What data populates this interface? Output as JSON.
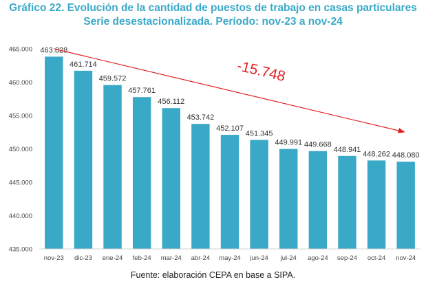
{
  "header": {
    "title_line1": "Gráfico 22. Evolución de la cantidad de puestos de trabajo en casas particulares",
    "title_line2": "Serie desestacionalizada. Período: nov-23 a nov-24"
  },
  "footer": {
    "source": "Fuente: elaboración CEPA en base a SIPA."
  },
  "colors": {
    "bar": "#3aa9c8",
    "title": "#3aa9c8",
    "trend": "#e02020"
  },
  "chart_data": {
    "type": "bar",
    "title": "Gráfico 22. Evolución de la cantidad de puestos de trabajo en casas particulares",
    "subtitle": "Serie desestacionalizada. Período: nov-23 a nov-24",
    "categories": [
      "nov-23",
      "dic-23",
      "ene-24",
      "feb-24",
      "mar-24",
      "abr-24",
      "may-24",
      "jun-24",
      "jul-24",
      "ago-24",
      "sep-24",
      "oct-24",
      "nov-24"
    ],
    "values": [
      463828,
      461714,
      459572,
      457761,
      456112,
      453742,
      452107,
      451345,
      449991,
      449668,
      448941,
      448262,
      448080
    ],
    "value_labels": [
      "463.828",
      "461.714",
      "459.572",
      "457.761",
      "456.112",
      "453.742",
      "452.107",
      "451.345",
      "449.991",
      "449.668",
      "448.941",
      "448.262",
      "448.080"
    ],
    "ylim": [
      435000,
      465000
    ],
    "yticks": [
      435000,
      440000,
      445000,
      450000,
      455000,
      460000,
      465000
    ],
    "ytick_labels": [
      "435.000",
      "440.000",
      "445.000",
      "450.000",
      "455.000",
      "460.000",
      "465.000"
    ],
    "xlabel": "",
    "ylabel": "",
    "grid": false,
    "annotation": {
      "text": "-15.748",
      "from_category": "nov-23",
      "to_category": "nov-24"
    }
  }
}
